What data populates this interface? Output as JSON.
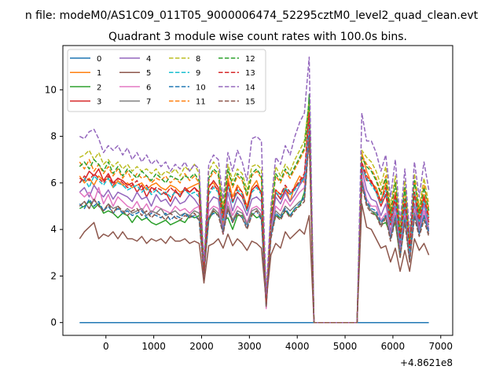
{
  "chart_data": {
    "type": "line",
    "suptitle": "n file: modeM0/AS1C09_011T05_9000006474_52295cztM0_level2_quad_clean.evt",
    "title": "Quadrant 3 module wise count rates with 100.0s bins.",
    "xlabel": "",
    "ylabel": "",
    "x_offset_label": "+4.8621e8",
    "xlim": [
      -900,
      7250
    ],
    "ylim": [
      -0.55,
      11.9
    ],
    "xticks": [
      0,
      1000,
      2000,
      3000,
      4000,
      5000,
      6000,
      7000
    ],
    "yticks": [
      0,
      2,
      4,
      6,
      8,
      10
    ],
    "legend_position": "upper-left",
    "legend": [
      "0",
      "1",
      "2",
      "3",
      "4",
      "5",
      "6",
      "7",
      "8",
      "9",
      "10",
      "11",
      "12",
      "13",
      "14",
      "15"
    ],
    "colors": [
      "#1f77b4",
      "#ff7f0e",
      "#2ca02c",
      "#d62728",
      "#9467bd",
      "#8c564b",
      "#e377c2",
      "#7f7f7f",
      "#bcbd22",
      "#17becf",
      "#1f77b4",
      "#ff7f0e",
      "#2ca02c",
      "#d62728",
      "#9467bd",
      "#8c564b"
    ],
    "linestyles": [
      "solid",
      "solid",
      "solid",
      "solid",
      "solid",
      "solid",
      "solid",
      "solid",
      "dashed",
      "dashed",
      "dashed",
      "dashed",
      "dashed",
      "dashed",
      "dashed",
      "dashed"
    ],
    "x_seg1_start": -550,
    "x_seg1_step": 100,
    "x_seg2_start": 5250,
    "x_seg2_step": 100,
    "series": [
      {
        "name": "0",
        "values": [
          [
            -550,
            0
          ],
          [
            6750,
            0
          ]
        ]
      },
      {
        "name": "1",
        "seg1": [
          6.3,
          6.0,
          6.2,
          5.9,
          6.3,
          6.1,
          6.2,
          5.8,
          6.1,
          5.9,
          6.0,
          5.8,
          5.9,
          6.0,
          5.7,
          5.9,
          6.0,
          5.8,
          5.7,
          5.9,
          5.8,
          5.6,
          5.7,
          5.8,
          5.9,
          6.0,
          2.3,
          5.9,
          6.0,
          5.6,
          4.2,
          6.2,
          5.4,
          5.9,
          5.6,
          5.0,
          5.8,
          6.1,
          5.5,
          0.75,
          4.2,
          5.7,
          5.5,
          5.8,
          5.2,
          5.9,
          6.3,
          6.0,
          9.3
        ],
        "seg2": [
          7.3,
          6.5,
          6.0,
          5.8,
          5.2,
          6.0,
          4.6,
          5.6,
          3.7,
          5.2,
          3.2,
          5.6,
          4.6,
          5.5,
          4.6
        ]
      },
      {
        "name": "2",
        "seg1": [
          4.9,
          5.0,
          5.2,
          4.9,
          5.1,
          4.7,
          4.8,
          4.7,
          4.5,
          4.7,
          4.6,
          4.3,
          4.6,
          4.4,
          4.5,
          4.3,
          4.2,
          4.3,
          4.4,
          4.2,
          4.3,
          4.4,
          4.3,
          4.6,
          4.5,
          4.6,
          2.2,
          4.4,
          4.8,
          4.6,
          4.4,
          4.5,
          4.0,
          4.6,
          4.6,
          4.3,
          4.7,
          4.5,
          4.6,
          0.8,
          3.8,
          4.6,
          4.5,
          4.8,
          4.6,
          4.9,
          5.0,
          5.6,
          9.8
        ],
        "seg2": [
          6.2,
          5.1,
          4.8,
          4.6,
          4.2,
          4.3,
          3.8,
          4.3,
          2.8,
          4.4,
          3.2,
          4.5,
          4.2,
          4.5,
          4.2
        ]
      },
      {
        "name": "3",
        "seg1": [
          6.2,
          6.1,
          6.5,
          6.3,
          6.6,
          6.1,
          6.4,
          6.0,
          6.2,
          6.1,
          5.9,
          6.0,
          5.6,
          5.9,
          5.4,
          5.8,
          5.7,
          5.5,
          5.6,
          5.2,
          5.7,
          5.4,
          5.8,
          5.6,
          5.8,
          5.6,
          2.0,
          5.8,
          6.1,
          5.8,
          4.6,
          5.9,
          5.2,
          5.6,
          5.4,
          4.8,
          5.7,
          5.9,
          5.6,
          0.8,
          4.3,
          5.6,
          5.3,
          5.7,
          5.5,
          5.8,
          6.0,
          6.3,
          8.8
        ],
        "seg2": [
          6.8,
          6.1,
          6.1,
          5.6,
          5.0,
          5.5,
          4.2,
          5.3,
          3.4,
          5.0,
          2.9,
          5.6,
          4.1,
          5.4,
          4.3
        ]
      },
      {
        "name": "4",
        "seg1": [
          5.6,
          5.8,
          5.4,
          5.9,
          5.6,
          5.4,
          5.7,
          5.3,
          5.6,
          5.5,
          5.4,
          5.2,
          5.6,
          5.3,
          5.4,
          5.0,
          5.5,
          5.2,
          5.3,
          5.0,
          5.4,
          5.1,
          5.2,
          5.5,
          5.3,
          5.0,
          1.9,
          5.1,
          5.4,
          5.3,
          4.0,
          5.6,
          4.8,
          5.4,
          5.1,
          4.6,
          5.3,
          5.4,
          5.2,
          0.7,
          4.0,
          5.4,
          5.1,
          5.6,
          5.2,
          5.5,
          5.9,
          6.2,
          8.7
        ],
        "seg2": [
          6.6,
          5.7,
          5.3,
          5.2,
          4.6,
          5.1,
          3.9,
          5.0,
          3.1,
          4.8,
          2.8,
          5.1,
          4.0,
          5.1,
          4.0
        ]
      },
      {
        "name": "5",
        "seg1": [
          3.6,
          3.9,
          4.1,
          4.3,
          3.6,
          3.8,
          3.7,
          3.9,
          3.6,
          3.9,
          3.6,
          3.6,
          3.5,
          3.7,
          3.4,
          3.6,
          3.5,
          3.6,
          3.4,
          3.7,
          3.5,
          3.5,
          3.6,
          3.4,
          3.5,
          3.4,
          1.7,
          3.3,
          3.4,
          3.6,
          3.2,
          3.8,
          3.3,
          3.6,
          3.4,
          3.1,
          3.5,
          3.4,
          3.2,
          0.9,
          2.9,
          3.4,
          3.2,
          3.9,
          3.6,
          3.8,
          4.0,
          3.8,
          4.6
        ],
        "seg2": [
          5.1,
          4.1,
          4.0,
          3.6,
          3.2,
          3.3,
          2.6,
          3.2,
          2.2,
          3.1,
          2.2,
          3.6,
          3.1,
          3.4,
          2.9
        ]
      },
      {
        "name": "6",
        "seg1": [
          5.6,
          5.4,
          5.6,
          5.2,
          5.8,
          5.1,
          5.5,
          5.0,
          5.4,
          5.2,
          5.0,
          4.9,
          5.2,
          4.8,
          5.1,
          4.7,
          5.0,
          4.9,
          4.8,
          4.7,
          5.0,
          4.8,
          4.9,
          4.7,
          4.9,
          5.0,
          2.0,
          4.8,
          5.0,
          4.9,
          3.8,
          5.2,
          4.6,
          5.0,
          4.8,
          4.3,
          4.9,
          5.0,
          4.8,
          0.6,
          3.9,
          5.0,
          4.8,
          5.3,
          5.0,
          5.3,
          5.6,
          5.8,
          8.4
        ],
        "seg2": [
          6.3,
          5.3,
          5.0,
          5.0,
          4.4,
          4.7,
          3.7,
          4.7,
          2.9,
          4.6,
          2.7,
          4.8,
          3.8,
          4.8,
          3.9
        ]
      },
      {
        "name": "7",
        "seg1": [
          5.0,
          5.2,
          4.9,
          5.3,
          5.0,
          4.8,
          5.1,
          4.9,
          5.0,
          4.7,
          4.9,
          4.7,
          4.8,
          4.9,
          4.6,
          4.8,
          4.7,
          4.9,
          4.6,
          4.7,
          4.8,
          4.6,
          4.7,
          4.6,
          4.8,
          4.7,
          2.1,
          4.5,
          4.9,
          4.7,
          3.9,
          5.0,
          4.4,
          4.8,
          4.7,
          4.2,
          4.8,
          4.9,
          4.6,
          0.8,
          3.8,
          4.8,
          4.6,
          5.0,
          4.8,
          5.0,
          5.2,
          5.3,
          8.0
        ],
        "seg2": [
          6.0,
          5.1,
          4.8,
          4.7,
          4.2,
          4.6,
          3.6,
          4.6,
          2.8,
          4.5,
          2.6,
          4.7,
          3.8,
          4.6,
          3.8
        ]
      },
      {
        "name": "8",
        "seg1": [
          7.1,
          7.2,
          7.4,
          7.0,
          7.3,
          6.8,
          7.0,
          6.7,
          6.9,
          6.6,
          6.8,
          6.5,
          6.7,
          6.5,
          6.6,
          6.4,
          6.6,
          6.3,
          6.5,
          6.4,
          6.6,
          6.3,
          6.7,
          6.5,
          6.8,
          6.4,
          2.5,
          6.5,
          6.9,
          6.6,
          5.0,
          6.8,
          6.1,
          6.6,
          6.4,
          5.7,
          6.7,
          6.8,
          6.6,
          0.8,
          4.8,
          6.7,
          6.3,
          6.8,
          6.5,
          7.0,
          7.4,
          7.8,
          9.5
        ],
        "seg2": [
          7.4,
          7.1,
          6.9,
          6.5,
          5.9,
          6.7,
          5.0,
          6.3,
          4.1,
          6.1,
          3.6,
          6.4,
          5.0,
          6.2,
          5.1
        ]
      },
      {
        "name": "9",
        "seg1": [
          6.0,
          6.2,
          5.8,
          6.3,
          6.1,
          5.9,
          6.2,
          5.8,
          6.0,
          5.9,
          5.7,
          5.8,
          5.9,
          5.6,
          5.8,
          5.5,
          5.7,
          5.5,
          5.6,
          5.4,
          5.6,
          5.5,
          5.7,
          5.5,
          5.6,
          5.4,
          2.2,
          5.5,
          5.8,
          5.6,
          4.4,
          5.9,
          5.1,
          5.7,
          5.5,
          4.8,
          5.6,
          5.8,
          5.5,
          0.7,
          4.2,
          5.6,
          5.4,
          5.8,
          5.5,
          5.7,
          6.0,
          6.2,
          8.9
        ],
        "seg2": [
          6.8,
          6.2,
          5.9,
          5.6,
          5.1,
          5.7,
          4.3,
          5.4,
          3.5,
          5.2,
          3.1,
          5.5,
          4.3,
          5.3,
          4.4
        ]
      },
      {
        "name": "10",
        "seg1": [
          5.1,
          4.9,
          5.3,
          5.0,
          5.2,
          4.8,
          5.0,
          4.7,
          4.9,
          4.7,
          4.8,
          4.6,
          4.7,
          4.8,
          4.5,
          4.7,
          4.6,
          4.5,
          4.7,
          4.4,
          4.6,
          4.5,
          4.7,
          4.5,
          4.6,
          4.4,
          2.1,
          4.5,
          4.7,
          4.6,
          3.9,
          4.8,
          4.3,
          4.7,
          4.5,
          4.1,
          4.6,
          4.8,
          4.4,
          0.7,
          3.7,
          4.7,
          4.5,
          4.9,
          4.6,
          4.9,
          5.1,
          5.4,
          8.2
        ],
        "seg2": [
          6.0,
          5.2,
          4.9,
          4.8,
          4.3,
          4.6,
          3.6,
          4.5,
          2.9,
          4.4,
          2.7,
          4.6,
          3.8,
          4.6,
          3.9
        ]
      },
      {
        "name": "11",
        "seg1": [
          6.9,
          6.6,
          7.0,
          6.5,
          6.8,
          6.4,
          6.7,
          6.3,
          6.6,
          6.2,
          6.5,
          6.1,
          6.4,
          6.2,
          6.3,
          6.0,
          6.2,
          6.1,
          6.3,
          6.0,
          6.2,
          6.0,
          6.4,
          6.1,
          6.3,
          6.0,
          2.4,
          6.1,
          6.5,
          6.3,
          4.8,
          6.5,
          5.8,
          6.3,
          6.1,
          5.4,
          6.3,
          6.5,
          6.2,
          0.8,
          4.6,
          6.3,
          6.0,
          6.5,
          6.2,
          6.6,
          7.0,
          7.4,
          9.2
        ],
        "seg2": [
          7.2,
          6.8,
          6.6,
          6.2,
          5.6,
          6.3,
          4.8,
          6.0,
          3.9,
          5.8,
          3.4,
          6.1,
          4.8,
          5.9,
          4.9
        ]
      },
      {
        "name": "12",
        "seg1": [
          6.7,
          6.9,
          6.6,
          7.0,
          6.8,
          6.5,
          6.9,
          6.4,
          6.7,
          6.3,
          6.6,
          6.4,
          6.2,
          6.5,
          6.3,
          6.1,
          6.4,
          6.2,
          6.0,
          6.3,
          6.2,
          6.1,
          6.3,
          6.2,
          6.4,
          6.1,
          2.3,
          6.2,
          6.6,
          6.4,
          4.7,
          6.6,
          5.9,
          6.4,
          6.2,
          5.5,
          6.4,
          6.6,
          6.3,
          0.9,
          4.5,
          6.4,
          6.1,
          6.6,
          6.3,
          6.7,
          7.1,
          7.5,
          9.6
        ],
        "seg2": [
          7.1,
          6.7,
          6.5,
          6.1,
          5.5,
          6.2,
          4.7,
          6.0,
          3.8,
          5.8,
          3.3,
          6.1,
          4.7,
          5.8,
          4.8
        ]
      },
      {
        "name": "13",
        "seg1": [
          6.0,
          6.3,
          6.1,
          6.4,
          6.2,
          6.0,
          6.3,
          5.9,
          6.2,
          6.0,
          5.8,
          5.9,
          6.1,
          5.7,
          5.9,
          5.6,
          5.8,
          5.7,
          5.5,
          5.8,
          5.6,
          5.5,
          5.7,
          5.6,
          5.8,
          5.5,
          2.2,
          5.6,
          5.9,
          5.7,
          4.5,
          6.0,
          5.2,
          5.8,
          5.6,
          4.9,
          5.7,
          5.9,
          5.6,
          0.8,
          4.3,
          5.7,
          5.5,
          5.9,
          5.6,
          5.8,
          6.1,
          6.4,
          9.0
        ],
        "seg2": [
          6.9,
          6.3,
          6.0,
          5.7,
          5.2,
          5.8,
          4.4,
          5.5,
          3.6,
          5.3,
          3.2,
          5.6,
          4.4,
          5.4,
          4.5
        ]
      },
      {
        "name": "14",
        "seg1": [
          8.0,
          7.9,
          8.2,
          8.3,
          7.9,
          7.3,
          7.6,
          7.4,
          7.6,
          7.2,
          7.5,
          7.0,
          7.3,
          6.9,
          7.2,
          6.8,
          7.0,
          6.7,
          6.9,
          6.5,
          6.8,
          6.6,
          6.9,
          6.5,
          6.8,
          6.6,
          2.6,
          6.8,
          7.2,
          7.0,
          5.3,
          7.3,
          6.5,
          7.4,
          6.9,
          6.1,
          7.9,
          8.0,
          7.8,
          1.2,
          5.0,
          7.1,
          6.8,
          7.6,
          7.2,
          8.0,
          8.6,
          9.0,
          11.4
        ],
        "seg2": [
          9.0,
          7.8,
          7.8,
          7.3,
          6.5,
          7.2,
          5.4,
          7.0,
          4.3,
          6.6,
          3.8,
          6.9,
          5.4,
          6.9,
          5.7
        ]
      },
      {
        "name": "15",
        "seg1": [
          5.0,
          5.2,
          4.9,
          5.3,
          5.0,
          4.8,
          5.1,
          4.7,
          5.0,
          4.8,
          4.6,
          4.8,
          4.9,
          4.6,
          4.8,
          4.5,
          4.7,
          4.6,
          4.4,
          4.7,
          4.5,
          4.4,
          4.6,
          4.5,
          4.7,
          4.4,
          2.0,
          4.5,
          4.8,
          4.6,
          3.8,
          4.9,
          4.3,
          4.7,
          4.5,
          4.0,
          4.6,
          4.8,
          4.5,
          0.7,
          3.6,
          4.6,
          4.4,
          4.8,
          4.5,
          4.8,
          5.0,
          5.2,
          7.9
        ],
        "seg2": [
          5.9,
          5.0,
          4.7,
          4.6,
          4.1,
          4.5,
          3.5,
          4.4,
          2.8,
          4.3,
          2.6,
          4.5,
          3.7,
          4.4,
          3.7
        ]
      }
    ]
  }
}
